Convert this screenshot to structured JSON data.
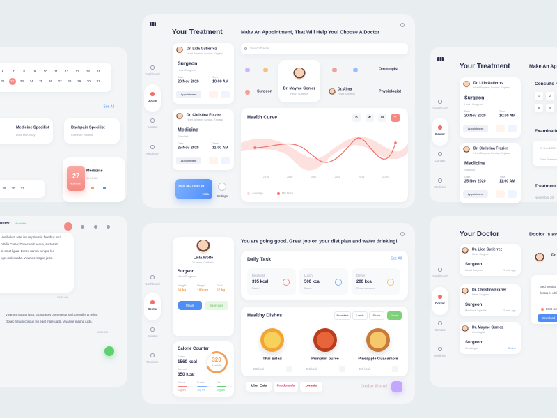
{
  "left_top": {
    "calendar": [
      [
        "6",
        "7",
        "8",
        "9",
        "10",
        "11",
        "12",
        "13",
        "14",
        "15"
      ],
      [
        "21",
        "22",
        "23",
        "24",
        "25",
        "26",
        "27",
        "28",
        "29",
        "30",
        "31"
      ]
    ],
    "see_all": "See All",
    "specialists": [
      {
        "title": "Medicine Specilist",
        "name": "Luke McKinnay"
      },
      {
        "title": "Backpain Specilist",
        "name": "Cameron Holland"
      }
    ],
    "dates": [
      "29",
      "30",
      "31"
    ],
    "highlight": {
      "day": "27",
      "month": "November"
    },
    "appointment": {
      "title": "Medicine",
      "time": "11:00 AM"
    }
  },
  "left_chat": {
    "name": "omez",
    "status": "Available",
    "messages": [
      {
        "lines": [
          "Vestibulum ante ipsum primis in faucibus orci",
          "cubilia Curae; Donec velit neque, auctor sit",
          "sit amet ligula. Donec rutrum congue leo",
          "eget malesuada. Vivamus magna justo."
        ],
        "time": "10:30 AM"
      },
      {
        "lines": [
          "Vivamus magna justo, lacinia eget consectetur sed, convallis at tellus.",
          "Donec rutrum congue leo eget malesuada. Vivamus magna justo."
        ],
        "time": "10:30 AM"
      }
    ]
  },
  "sidebar": [
    "Dashboard",
    "Doctor",
    "Contact",
    "Medicine"
  ],
  "treatment": {
    "title": "Your Treatment",
    "cards": [
      {
        "doctor": "Dr. Lida Gutierrez",
        "role": "Heart Surgeon, London, England",
        "category": "Surgeon",
        "specialty": "Heart Surgeon",
        "date_label": "Date",
        "date": "20 Nov 2020",
        "time_label": "Time",
        "time": "10:00 AM",
        "button": "Appointment"
      },
      {
        "doctor": "Dr. Christina Frazier",
        "role": "Heart Surgeon, London, England",
        "category": "Medicine",
        "specialty": "Specilist",
        "date_label": "Date",
        "date": "25 Nov 2020",
        "time_label": "Time",
        "time": "11:00 AM",
        "button": "Appointment"
      }
    ],
    "payment_card": {
      "number": "3500 6677 000 99",
      "brand": "VISA"
    },
    "settings": "Settings"
  },
  "appointment": {
    "title": "Make An Appointment, That Will Help You! Choose A Doctor",
    "search": "Search Doctor...",
    "featured": {
      "name": "Dr. Mayme Gomez",
      "role": "Heart Surgeon"
    },
    "doctor": {
      "name": "Dr. Alma",
      "role": "Heart Surgeon"
    },
    "specialties": [
      "Oncologist",
      "Surgeon",
      "Physiologist"
    ]
  },
  "health_curve": {
    "title": "Health Curve",
    "periods": [
      "D",
      "W",
      "M",
      "Y"
    ],
    "years": [
      "2015",
      "2016",
      "2017",
      "2018",
      "2019",
      "2020"
    ],
    "legend": [
      "Average",
      "My Data"
    ]
  },
  "diet": {
    "profile": {
      "name": "Leila Wolfe",
      "info": "26 years, California",
      "category": "Surgeon",
      "specialty": "Heart Surgeon",
      "stats": [
        {
          "label": "Weight",
          "value": "64 kg"
        },
        {
          "label": "Height",
          "value": "180 cm"
        },
        {
          "label": "Goal",
          "value": "67 kg"
        }
      ],
      "buttons": [
        "Meals",
        "Exercises"
      ]
    },
    "calories": {
      "title": "Calorie Counter",
      "eaten_label": "Eaten",
      "eaten": "1560 kcal",
      "burned_label": "Burned",
      "burned": "350 kcal",
      "left": "320",
      "left_label": "kcal left",
      "macros": [
        {
          "label": "Carbs",
          "value": "12g left"
        },
        {
          "label": "Protein",
          "value": "30g left"
        },
        {
          "label": "Fat",
          "value": "10g left"
        }
      ]
    },
    "message": "You are going good. Great job on your diet plan and water drinking!",
    "daily_task": {
      "title": "Daily Task",
      "see_all": "See All",
      "items": [
        {
          "meal": "Breakfast",
          "kcal": "395 kcal",
          "status": "Eaten"
        },
        {
          "meal": "Lunch",
          "kcal": "500 kcal",
          "status": "Eaten"
        },
        {
          "meal": "Dinner",
          "kcal": "200 kcal",
          "status": "Recommended"
        }
      ]
    },
    "dishes": {
      "title": "Healthy Dishes",
      "tabs": [
        "Breakfast",
        "Lunch",
        "Snack",
        "Dinner"
      ],
      "items": [
        {
          "name": "Thai Salad",
          "kcal": "356 kcal"
        },
        {
          "name": "Pumpkin puree",
          "kcal": "356 kcal"
        },
        {
          "name": "Pineapple Guacamole",
          "kcal": "356 kcal"
        }
      ]
    },
    "delivery": [
      "Uber Eats",
      "Foodpanda",
      "zomato"
    ],
    "order": "Order Food"
  },
  "right_treatment": {
    "appointment_title": "Make An App",
    "consults": "Consults F",
    "calendar": [
      "1",
      "2",
      "3",
      "8",
      "9",
      "10"
    ],
    "examination": "Examinatio",
    "exam_date": "22 Dec 2020",
    "exam_doctor": "Ellen Bradshaw",
    "treatment": "Treatment",
    "treatment_date": "November 20"
  },
  "your_doctor": {
    "title": "Your Doctor",
    "available": "Doctor is ava",
    "doctors": [
      {
        "name": "Dr. Lida Gutierrez",
        "role": "Heart Surgeon",
        "category": "Surgeon",
        "specialty": "Heart Surgeon",
        "status": "5 min ago"
      },
      {
        "name": "Dr. Christina Frazier",
        "role": "Heart Surgeon",
        "category": "Surgeon",
        "specialty": "Medicine Specilist",
        "status": "5 min ago"
      },
      {
        "name": "Dr. Mayme Gomez",
        "role": "Oncologist",
        "category": "Surgeon",
        "specialty": "Oncologist",
        "status": "Online"
      }
    ],
    "chat": {
      "name": "Dr",
      "lines": [
        "Sed porttitor",
        "luctus et ultri"
      ],
      "file": "ECG resul",
      "button": "Download"
    }
  }
}
